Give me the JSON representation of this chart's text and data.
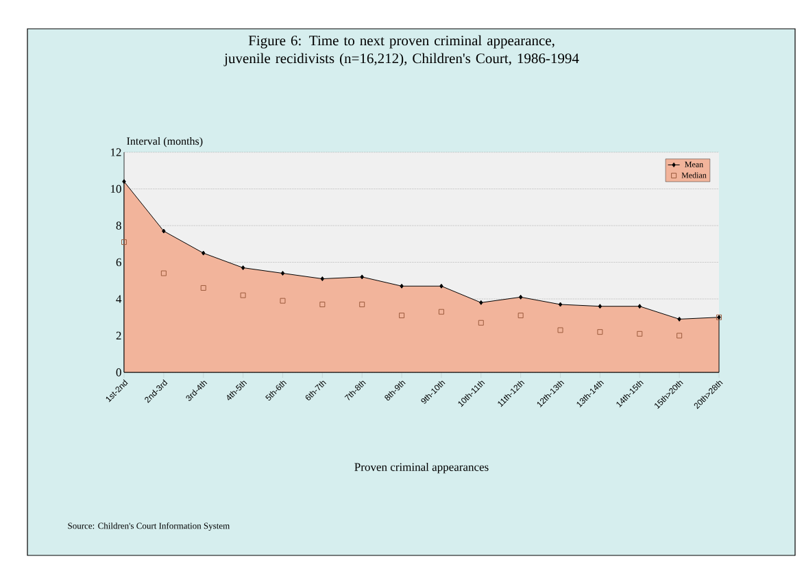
{
  "chart_data": {
    "type": "area",
    "title": "Figure 6: Time to next proven criminal appearance, juvenile recidivists (n=16,212), Children's Court, 1986-1994",
    "xlabel": "Proven criminal appearances",
    "ylabel": "Interval (months)",
    "categories": [
      "1st-2nd",
      "2nd-3rd",
      "3rd-4th",
      "4th-5th",
      "5th-6th",
      "6th-7th",
      "7th-8th",
      "8th-9th",
      "9th-10th",
      "10th-11th",
      "11th-12th",
      "12th-13th",
      "13th-14th",
      "14th-15th",
      "15th>20th",
      "20th>28th"
    ],
    "series": [
      {
        "name": "Mean",
        "color": "#f2b49b",
        "marker": "diamond",
        "values": [
          10.4,
          7.7,
          6.5,
          5.7,
          5.4,
          5.1,
          5.2,
          4.7,
          4.7,
          3.8,
          4.1,
          3.7,
          3.6,
          3.6,
          2.9,
          3.0
        ]
      },
      {
        "name": "Median",
        "type": "scatter",
        "color": "#9c5a3c",
        "marker": "square",
        "values": [
          7.1,
          5.4,
          4.6,
          4.2,
          3.9,
          3.7,
          3.7,
          3.1,
          3.3,
          2.7,
          3.1,
          2.3,
          2.2,
          2.1,
          2.0,
          3.0
        ]
      }
    ],
    "ylim": [
      0,
      12
    ],
    "yticks": [
      0,
      2,
      4,
      6,
      8,
      10,
      12
    ],
    "grid": "y",
    "legend": "top right",
    "annotations": [
      "Source: Children's Court Information System"
    ]
  }
}
